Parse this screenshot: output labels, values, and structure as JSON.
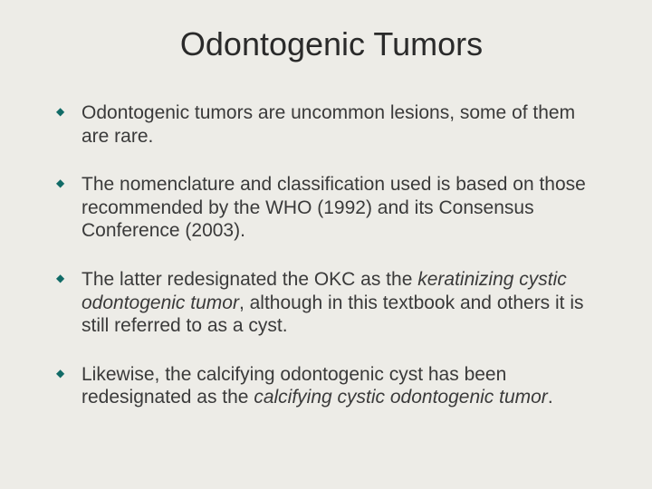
{
  "slide": {
    "background_color": "#edece7",
    "text_color": "#3a3a3a",
    "title_color": "#2a2a2a",
    "bullet_marker_color": "#116b67",
    "title": "Odontogenic Tumors",
    "title_fontsize": 36,
    "body_fontsize": 21,
    "line_height": 1.22,
    "bullets": [
      {
        "segments": [
          {
            "text": "Odontogenic tumors are uncommon lesions, some of them are rare.",
            "italic": false
          }
        ]
      },
      {
        "segments": [
          {
            "text": "The nomenclature and classification used is based on those recommended by the WHO (1992) and its Consensus Conference (2003).",
            "italic": false
          }
        ]
      },
      {
        "segments": [
          {
            "text": "The latter redesignated the OKC as the ",
            "italic": false
          },
          {
            "text": "keratinizing cystic odontogenic tumor",
            "italic": true
          },
          {
            "text": ", although in this textbook and others it is still referred to as a cyst.",
            "italic": false
          }
        ]
      },
      {
        "segments": [
          {
            "text": "Likewise, the calcifying odontogenic cyst has been redesignated as the ",
            "italic": false
          },
          {
            "text": "calcifying cystic odontogenic tumor",
            "italic": true
          },
          {
            "text": ".",
            "italic": false
          }
        ]
      }
    ]
  }
}
